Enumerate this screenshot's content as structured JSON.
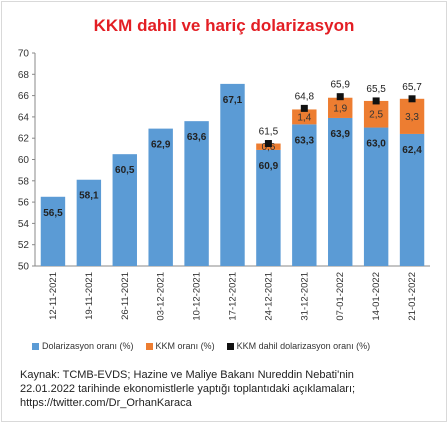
{
  "chart_data": {
    "type": "bar",
    "title": "KKM dahil ve hariç dolarizasyon",
    "ylim": [
      50,
      70
    ],
    "yticks": [
      50,
      52,
      54,
      56,
      58,
      60,
      62,
      64,
      66,
      68,
      70
    ],
    "categories": [
      "12-11-2021",
      "19-11-2021",
      "26-11-2021",
      "03-12-2021",
      "10-12-2021",
      "17-12-2021",
      "24-12-2021",
      "31-12-2021",
      "07-01-2022",
      "14-01-2022",
      "21-01-2022"
    ],
    "series": [
      {
        "name": "Dolarizasyon oranı (%)",
        "color": "#5b9bd5",
        "values": [
          56.5,
          58.1,
          60.5,
          62.9,
          63.6,
          67.1,
          60.9,
          63.3,
          63.9,
          63.0,
          62.4
        ],
        "labels": [
          "56,5",
          "58,1",
          "60,5",
          "62,9",
          "63,6",
          "67,1",
          "60,9",
          "63,3",
          "63,9",
          "63,0",
          "62,4"
        ]
      },
      {
        "name": "KKM oranı (%)",
        "color": "#ed7d31",
        "values": [
          null,
          null,
          null,
          null,
          null,
          null,
          0.6,
          1.4,
          1.9,
          2.5,
          3.3
        ],
        "labels": [
          "",
          "",
          "",
          "",
          "",
          "",
          "0,6",
          "1,4",
          "1,9",
          "2,5",
          "3,3"
        ]
      },
      {
        "name": "KKM dahil dolarizasyon oranı (%)",
        "color": "#111111",
        "values": [
          null,
          null,
          null,
          null,
          null,
          null,
          61.5,
          64.8,
          65.9,
          65.5,
          65.7
        ],
        "labels": [
          "",
          "",
          "",
          "",
          "",
          "",
          "61,5",
          "64,8",
          "65,9",
          "65,5",
          "65,7"
        ]
      }
    ],
    "source_lines": [
      "Kaynak: TCMB-EVDS;  Hazine ve  Maliye Bakanı Nureddin Nebati'nin",
      "22.01.2022 tarihinde ekonomistlerle yaptığı toplantıdaki açıklamaları;",
      "https://twitter.com/Dr_OrhanKaraca"
    ]
  }
}
